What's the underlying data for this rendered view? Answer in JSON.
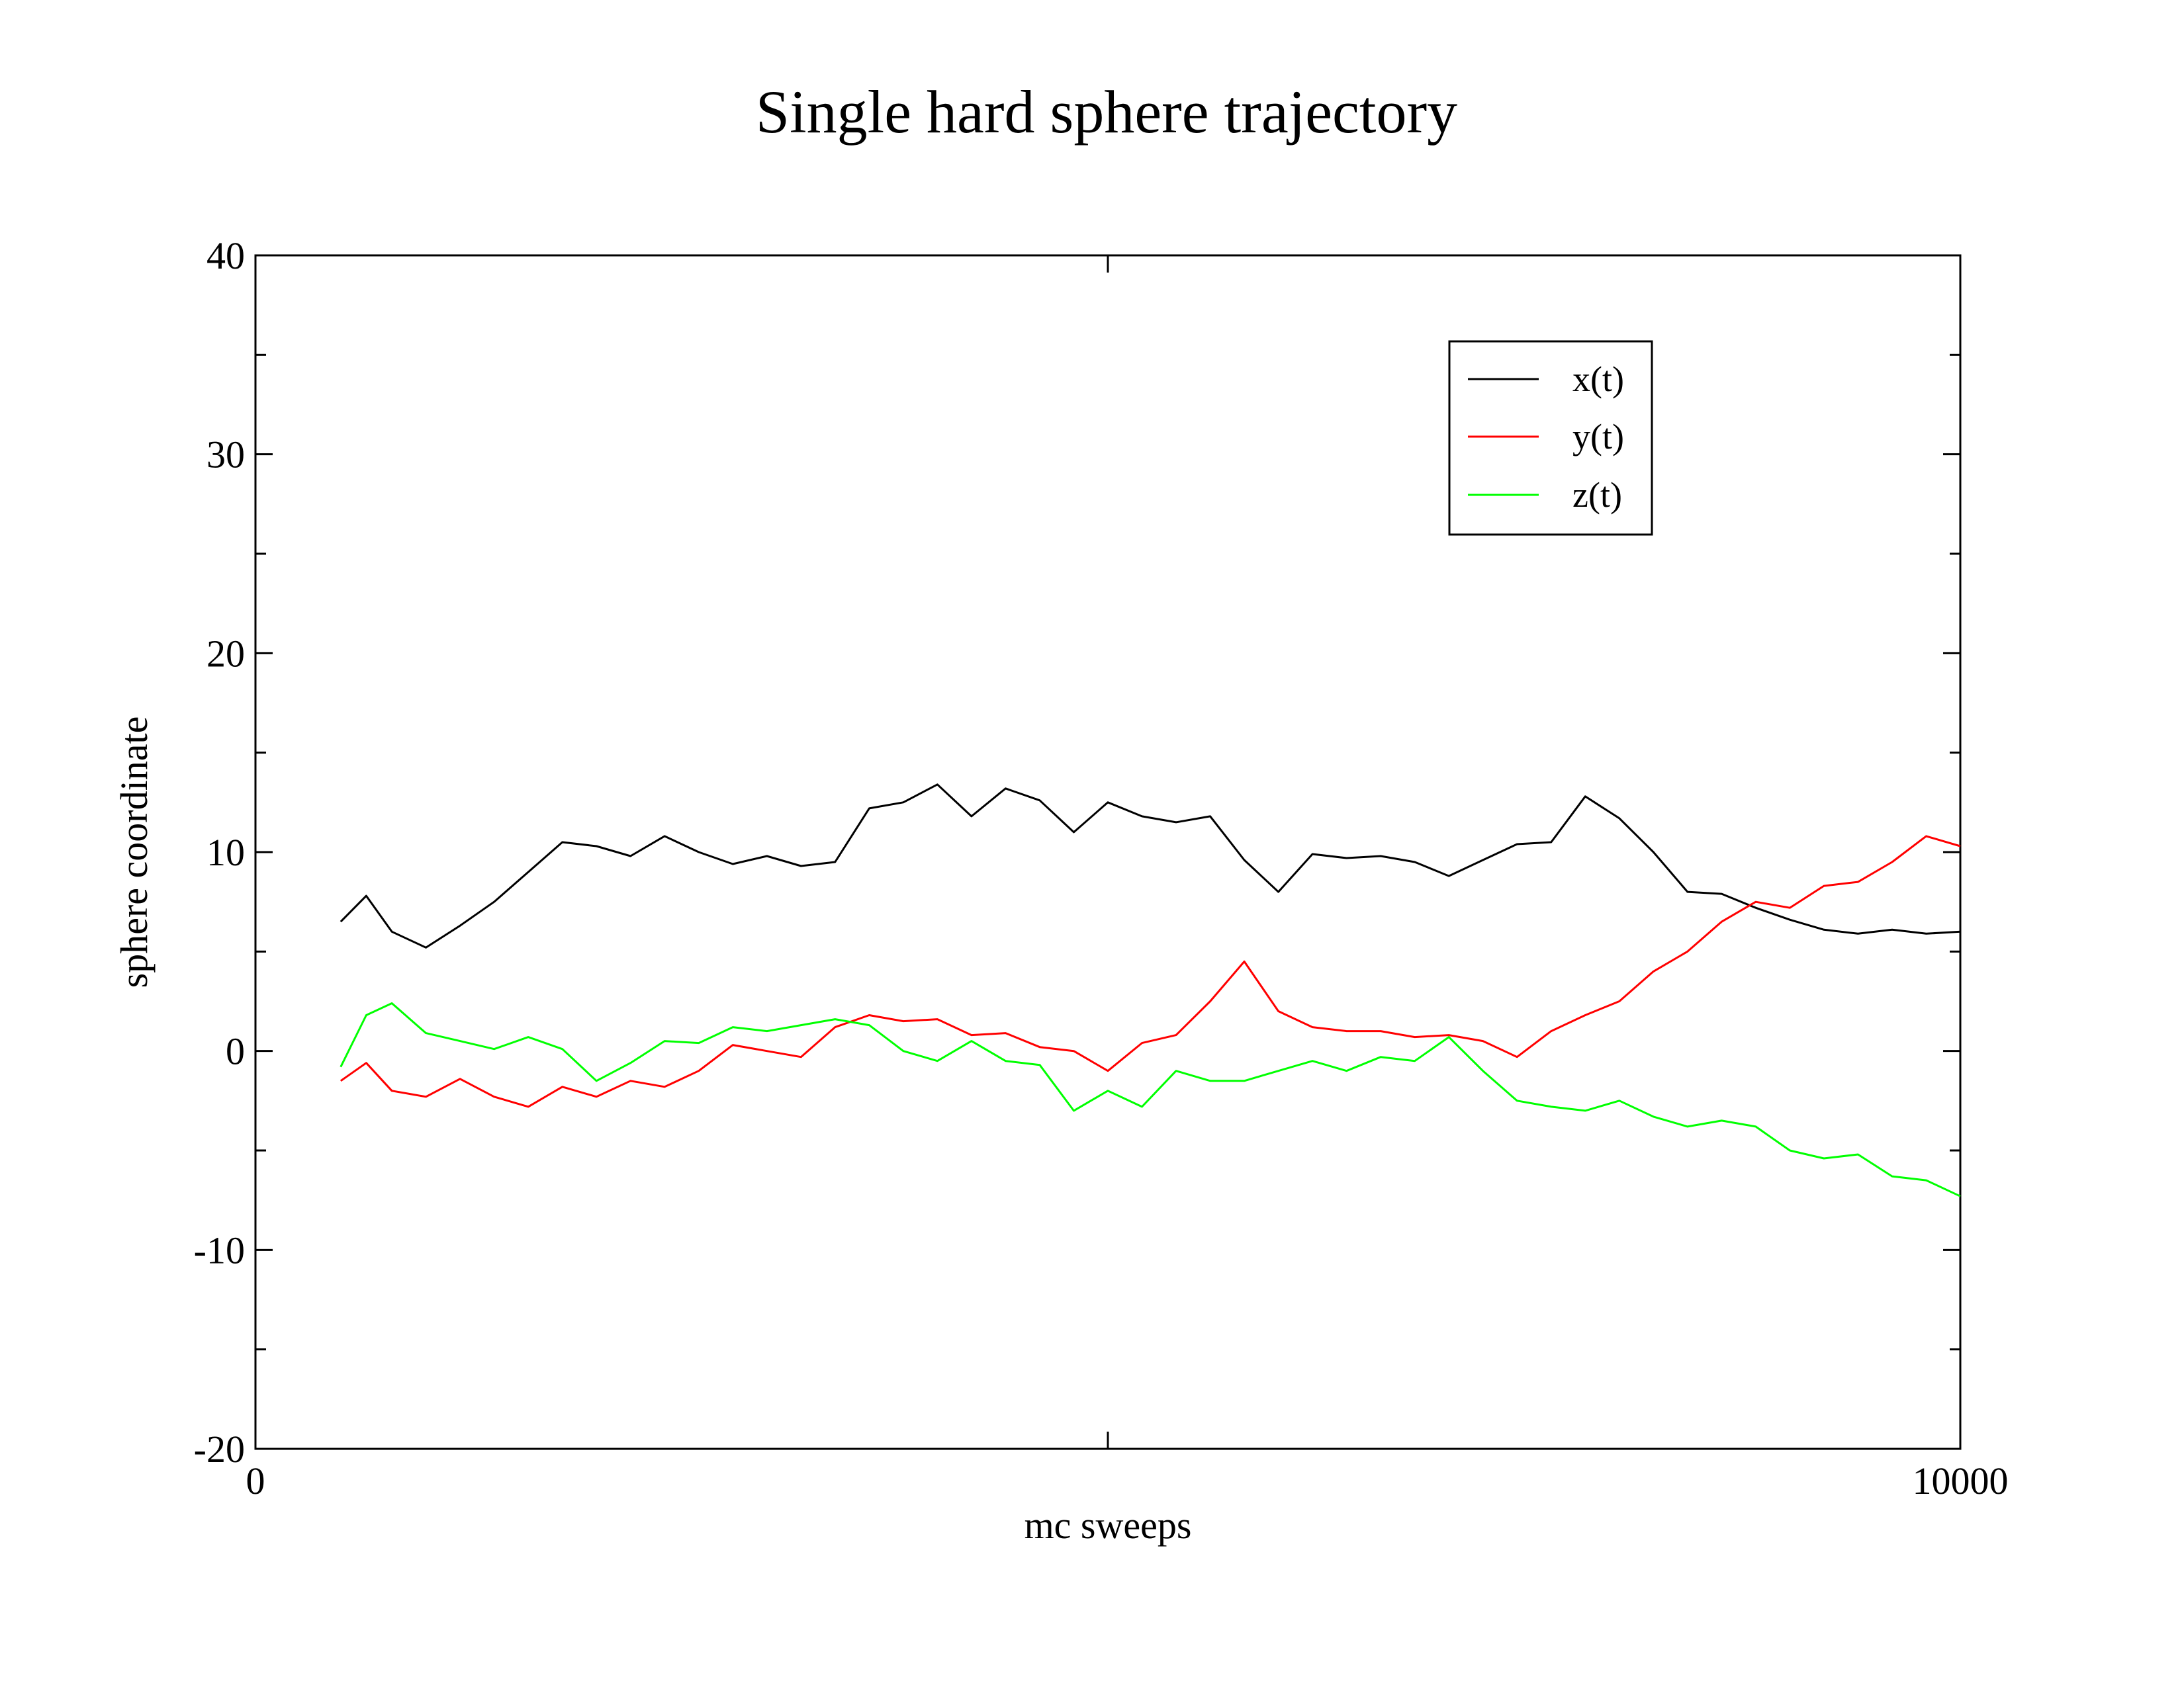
{
  "chart_data": {
    "type": "line",
    "title": "Single hard sphere trajectory",
    "xlabel": "mc sweeps",
    "ylabel": "sphere coordinate",
    "xlim": [
      0,
      10000
    ],
    "ylim": [
      -20,
      40
    ],
    "x_tick_labels": [
      "0",
      "10000"
    ],
    "y_tick_labels": [
      "-20",
      "-10",
      "0",
      "10",
      "20",
      "30",
      "40"
    ],
    "grid": false,
    "legend_position": "top-right",
    "series": [
      {
        "name": "x(t)",
        "color": "#000000",
        "x": [
          500,
          650,
          800,
          1000,
          1200,
          1400,
          1600,
          1800,
          2000,
          2200,
          2400,
          2600,
          2800,
          3000,
          3200,
          3400,
          3600,
          3800,
          4000,
          4200,
          4400,
          4600,
          4800,
          5000,
          5200,
          5400,
          5600,
          5800,
          6000,
          6200,
          6400,
          6600,
          6800,
          7000,
          7200,
          7400,
          7600,
          7800,
          8000,
          8200,
          8400,
          8600,
          8800,
          9000,
          9200,
          9400,
          9600,
          9800,
          10000
        ],
        "values": [
          6.5,
          7.8,
          6.0,
          5.2,
          6.3,
          7.5,
          9.0,
          10.5,
          10.3,
          9.8,
          10.8,
          10.0,
          9.4,
          9.8,
          9.3,
          9.5,
          12.2,
          12.5,
          13.4,
          11.8,
          13.2,
          12.6,
          11.0,
          12.5,
          11.8,
          11.5,
          11.8,
          9.6,
          8.0,
          9.9,
          9.7,
          9.8,
          9.5,
          8.8,
          9.6,
          10.4,
          10.5,
          12.8,
          11.7,
          10.0,
          8.0,
          7.9,
          7.2,
          6.6,
          6.1,
          5.9,
          6.1,
          5.9,
          6.0
        ]
      },
      {
        "name": "y(t)",
        "color": "#ff0000",
        "x": [
          500,
          650,
          800,
          1000,
          1200,
          1400,
          1600,
          1800,
          2000,
          2200,
          2400,
          2600,
          2800,
          3000,
          3200,
          3400,
          3600,
          3800,
          4000,
          4200,
          4400,
          4600,
          4800,
          5000,
          5200,
          5400,
          5600,
          5800,
          6000,
          6200,
          6400,
          6600,
          6800,
          7000,
          7200,
          7400,
          7600,
          7800,
          8000,
          8200,
          8400,
          8600,
          8800,
          9000,
          9200,
          9400,
          9600,
          9800,
          10000
        ],
        "values": [
          -1.5,
          -0.6,
          -2.0,
          -2.3,
          -1.4,
          -2.3,
          -2.8,
          -1.8,
          -2.3,
          -1.5,
          -1.8,
          -1.0,
          0.3,
          0.0,
          -0.3,
          1.2,
          1.8,
          1.5,
          1.6,
          0.8,
          0.9,
          0.2,
          0.0,
          -1.0,
          0.4,
          0.8,
          2.5,
          4.5,
          2.0,
          1.2,
          1.0,
          1.0,
          0.7,
          0.8,
          0.5,
          -0.3,
          1.0,
          1.8,
          2.5,
          4.0,
          5.0,
          6.5,
          7.5,
          7.2,
          8.3,
          8.5,
          9.5,
          10.8,
          10.3
        ]
      },
      {
        "name": "z(t)",
        "color": "#00ff00",
        "x": [
          500,
          650,
          800,
          1000,
          1200,
          1400,
          1600,
          1800,
          2000,
          2200,
          2400,
          2600,
          2800,
          3000,
          3200,
          3400,
          3600,
          3800,
          4000,
          4200,
          4400,
          4600,
          4800,
          5000,
          5200,
          5400,
          5600,
          5800,
          6000,
          6200,
          6400,
          6600,
          6800,
          7000,
          7200,
          7400,
          7600,
          7800,
          8000,
          8200,
          8400,
          8600,
          8800,
          9000,
          9200,
          9400,
          9600,
          9800,
          10000
        ],
        "values": [
          -0.8,
          1.8,
          2.4,
          0.9,
          0.5,
          0.1,
          0.7,
          0.1,
          -1.5,
          -0.6,
          0.5,
          0.4,
          1.2,
          1.0,
          1.3,
          1.6,
          1.3,
          0.0,
          -0.5,
          0.5,
          -0.5,
          -0.7,
          -3.0,
          -2.0,
          -2.8,
          -1.0,
          -1.5,
          -1.5,
          -1.0,
          -0.5,
          -1.0,
          -0.3,
          -0.5,
          0.7,
          -1.0,
          -2.5,
          -2.8,
          -3.0,
          -2.5,
          -3.3,
          -3.8,
          -3.5,
          -3.8,
          -5.0,
          -5.4,
          -5.2,
          -6.3,
          -6.5,
          -7.3
        ]
      }
    ]
  }
}
